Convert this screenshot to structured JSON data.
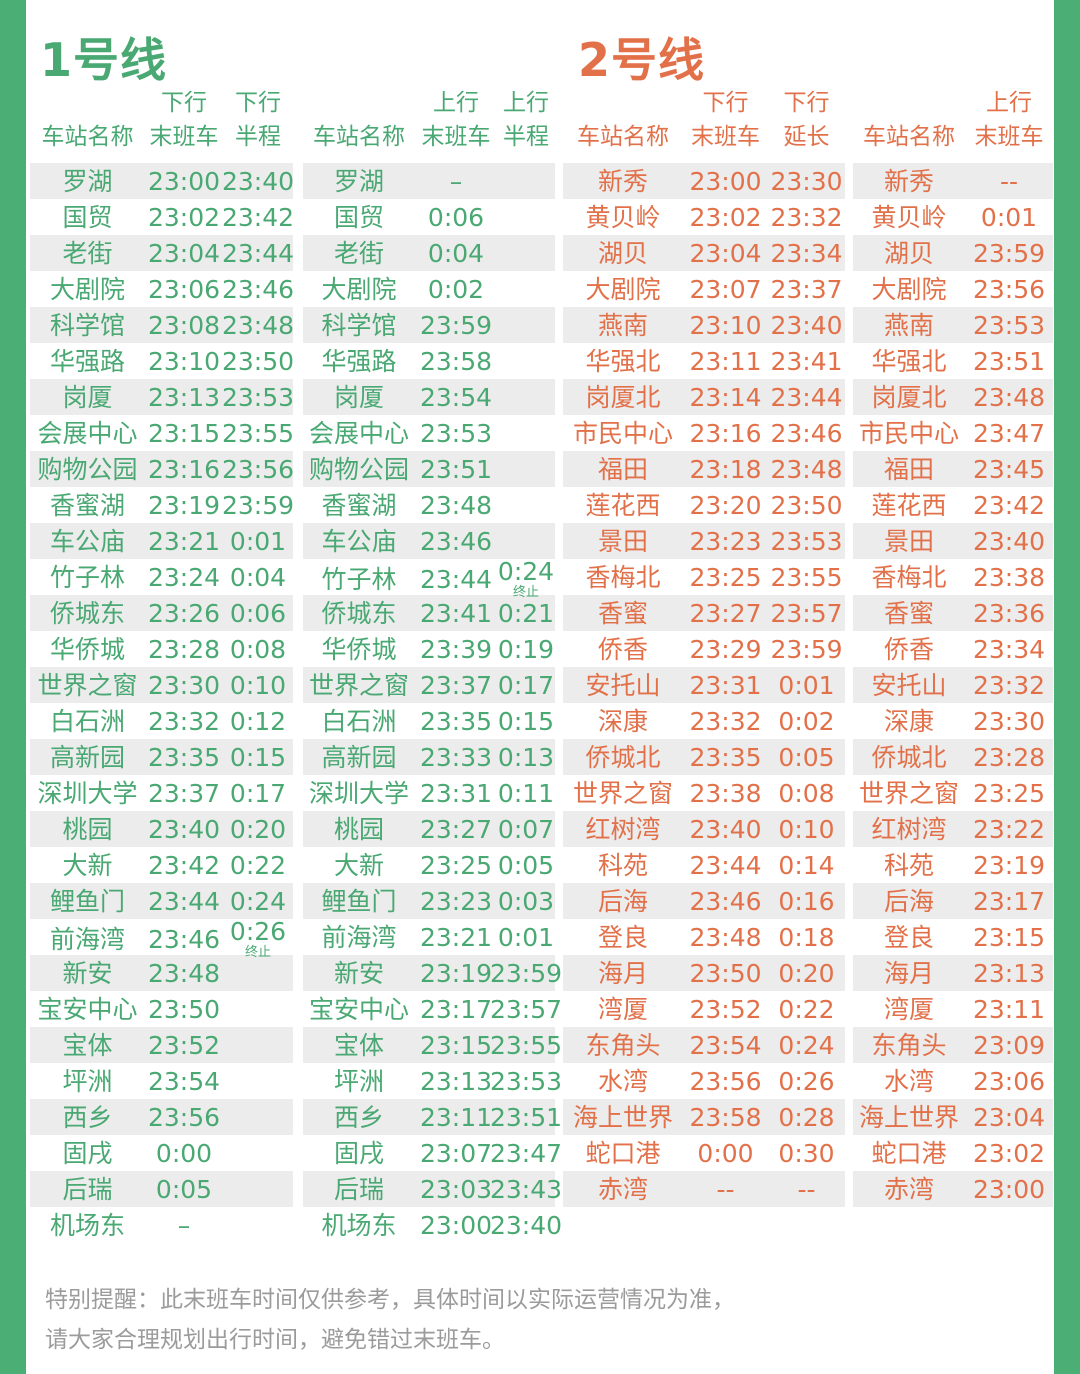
{
  "colors": {
    "line1_green": "#4aa873",
    "line2_orange": "#e2714a",
    "border_green": "#4bae74",
    "row_stripe": "#ececec",
    "footer_gray": "#9b9b9b"
  },
  "footer": {
    "line1": "特别提醒：此末班车时间仅供参考，具体时间以实际运营情况为准，",
    "line2": "请大家合理规划出行时间，避免错过末班车。"
  },
  "line1": {
    "title": "1号线",
    "down": {
      "headers": [
        {
          "top": "",
          "bottom": "车站名称"
        },
        {
          "top": "下行",
          "bottom": "末班车"
        },
        {
          "top": "下行",
          "bottom": "半程"
        }
      ],
      "rows": [
        [
          "罗湖",
          "23:00",
          "23:40"
        ],
        [
          "国贸",
          "23:02",
          "23:42"
        ],
        [
          "老街",
          "23:04",
          "23:44"
        ],
        [
          "大剧院",
          "23:06",
          "23:46"
        ],
        [
          "科学馆",
          "23:08",
          "23:48"
        ],
        [
          "华强路",
          "23:10",
          "23:50"
        ],
        [
          "岗厦",
          "23:13",
          "23:53"
        ],
        [
          "会展中心",
          "23:15",
          "23:55"
        ],
        [
          "购物公园",
          "23:16",
          "23:56"
        ],
        [
          "香蜜湖",
          "23:19",
          "23:59"
        ],
        [
          "车公庙",
          "23:21",
          "0:01"
        ],
        [
          "竹子林",
          "23:24",
          "0:04"
        ],
        [
          "侨城东",
          "23:26",
          "0:06"
        ],
        [
          "华侨城",
          "23:28",
          "0:08"
        ],
        [
          "世界之窗",
          "23:30",
          "0:10"
        ],
        [
          "白石洲",
          "23:32",
          "0:12"
        ],
        [
          "高新园",
          "23:35",
          "0:15"
        ],
        [
          "深圳大学",
          "23:37",
          "0:17"
        ],
        [
          "桃园",
          "23:40",
          "0:20"
        ],
        [
          "大新",
          "23:42",
          "0:22"
        ],
        [
          "鲤鱼门",
          "23:44",
          "0:24"
        ],
        [
          "前海湾",
          "23:46",
          {
            "t": "0:26",
            "n": "终止"
          }
        ],
        [
          "新安",
          "23:48",
          ""
        ],
        [
          "宝安中心",
          "23:50",
          ""
        ],
        [
          "宝体",
          "23:52",
          ""
        ],
        [
          "坪洲",
          "23:54",
          ""
        ],
        [
          "西乡",
          "23:56",
          ""
        ],
        [
          "固戌",
          "0:00",
          ""
        ],
        [
          "后瑞",
          "0:05",
          ""
        ],
        [
          "机场东",
          "–",
          ""
        ]
      ]
    },
    "up": {
      "headers": [
        {
          "top": "",
          "bottom": "车站名称"
        },
        {
          "top": "上行",
          "bottom": "末班车"
        },
        {
          "top": "上行",
          "bottom": "半程"
        }
      ],
      "rows": [
        [
          "罗湖",
          "–",
          ""
        ],
        [
          "国贸",
          "0:06",
          ""
        ],
        [
          "老街",
          "0:04",
          ""
        ],
        [
          "大剧院",
          "0:02",
          ""
        ],
        [
          "科学馆",
          "23:59",
          ""
        ],
        [
          "华强路",
          "23:58",
          ""
        ],
        [
          "岗厦",
          "23:54",
          ""
        ],
        [
          "会展中心",
          "23:53",
          ""
        ],
        [
          "购物公园",
          "23:51",
          ""
        ],
        [
          "香蜜湖",
          "23:48",
          ""
        ],
        [
          "车公庙",
          "23:46",
          ""
        ],
        [
          "竹子林",
          "23:44",
          {
            "t": "0:24",
            "n": "终止"
          }
        ],
        [
          "侨城东",
          "23:41",
          "0:21"
        ],
        [
          "华侨城",
          "23:39",
          "0:19"
        ],
        [
          "世界之窗",
          "23:37",
          "0:17"
        ],
        [
          "白石洲",
          "23:35",
          "0:15"
        ],
        [
          "高新园",
          "23:33",
          "0:13"
        ],
        [
          "深圳大学",
          "23:31",
          "0:11"
        ],
        [
          "桃园",
          "23:27",
          "0:07"
        ],
        [
          "大新",
          "23:25",
          "0:05"
        ],
        [
          "鲤鱼门",
          "23:23",
          "0:03"
        ],
        [
          "前海湾",
          "23:21",
          "0:01"
        ],
        [
          "新安",
          "23:19",
          "23:59"
        ],
        [
          "宝安中心",
          "23:17",
          "23:57"
        ],
        [
          "宝体",
          "23:15",
          "23:55"
        ],
        [
          "坪洲",
          "23:13",
          "23:53"
        ],
        [
          "西乡",
          "23:11",
          "23:51"
        ],
        [
          "固戌",
          "23:07",
          "23:47"
        ],
        [
          "后瑞",
          "23:03",
          "23:43"
        ],
        [
          "机场东",
          "23:00",
          "23:40"
        ]
      ]
    }
  },
  "line2": {
    "title": "2号线",
    "down": {
      "headers": [
        {
          "top": "",
          "bottom": "车站名称"
        },
        {
          "top": "下行",
          "bottom": "末班车"
        },
        {
          "top": "下行",
          "bottom": "延长"
        }
      ],
      "rows": [
        [
          "新秀",
          "23:00",
          "23:30"
        ],
        [
          "黄贝岭",
          "23:02",
          "23:32"
        ],
        [
          "湖贝",
          "23:04",
          "23:34"
        ],
        [
          "大剧院",
          "23:07",
          "23:37"
        ],
        [
          "燕南",
          "23:10",
          "23:40"
        ],
        [
          "华强北",
          "23:11",
          "23:41"
        ],
        [
          "岗厦北",
          "23:14",
          "23:44"
        ],
        [
          "市民中心",
          "23:16",
          "23:46"
        ],
        [
          "福田",
          "23:18",
          "23:48"
        ],
        [
          "莲花西",
          "23:20",
          "23:50"
        ],
        [
          "景田",
          "23:23",
          "23:53"
        ],
        [
          "香梅北",
          "23:25",
          "23:55"
        ],
        [
          "香蜜",
          "23:27",
          "23:57"
        ],
        [
          "侨香",
          "23:29",
          "23:59"
        ],
        [
          "安托山",
          "23:31",
          "0:01"
        ],
        [
          "深康",
          "23:32",
          "0:02"
        ],
        [
          "侨城北",
          "23:35",
          "0:05"
        ],
        [
          "世界之窗",
          "23:38",
          "0:08"
        ],
        [
          "红树湾",
          "23:40",
          "0:10"
        ],
        [
          "科苑",
          "23:44",
          "0:14"
        ],
        [
          "后海",
          "23:46",
          "0:16"
        ],
        [
          "登良",
          "23:48",
          "0:18"
        ],
        [
          "海月",
          "23:50",
          "0:20"
        ],
        [
          "湾厦",
          "23:52",
          "0:22"
        ],
        [
          "东角头",
          "23:54",
          "0:24"
        ],
        [
          "水湾",
          "23:56",
          "0:26"
        ],
        [
          "海上世界",
          "23:58",
          "0:28"
        ],
        [
          "蛇口港",
          "0:00",
          "0:30"
        ],
        [
          "赤湾",
          "--",
          "--"
        ]
      ]
    },
    "up": {
      "headers": [
        {
          "top": "",
          "bottom": "车站名称"
        },
        {
          "top": "上行",
          "bottom": "末班车"
        }
      ],
      "rows": [
        [
          "新秀",
          "--"
        ],
        [
          "黄贝岭",
          "0:01"
        ],
        [
          "湖贝",
          "23:59"
        ],
        [
          "大剧院",
          "23:56"
        ],
        [
          "燕南",
          "23:53"
        ],
        [
          "华强北",
          "23:51"
        ],
        [
          "岗厦北",
          "23:48"
        ],
        [
          "市民中心",
          "23:47"
        ],
        [
          "福田",
          "23:45"
        ],
        [
          "莲花西",
          "23:42"
        ],
        [
          "景田",
          "23:40"
        ],
        [
          "香梅北",
          "23:38"
        ],
        [
          "香蜜",
          "23:36"
        ],
        [
          "侨香",
          "23:34"
        ],
        [
          "安托山",
          "23:32"
        ],
        [
          "深康",
          "23:30"
        ],
        [
          "侨城北",
          "23:28"
        ],
        [
          "世界之窗",
          "23:25"
        ],
        [
          "红树湾",
          "23:22"
        ],
        [
          "科苑",
          "23:19"
        ],
        [
          "后海",
          "23:17"
        ],
        [
          "登良",
          "23:15"
        ],
        [
          "海月",
          "23:13"
        ],
        [
          "湾厦",
          "23:11"
        ],
        [
          "东角头",
          "23:09"
        ],
        [
          "水湾",
          "23:06"
        ],
        [
          "海上世界",
          "23:04"
        ],
        [
          "蛇口港",
          "23:02"
        ],
        [
          "赤湾",
          "23:00"
        ]
      ]
    }
  }
}
